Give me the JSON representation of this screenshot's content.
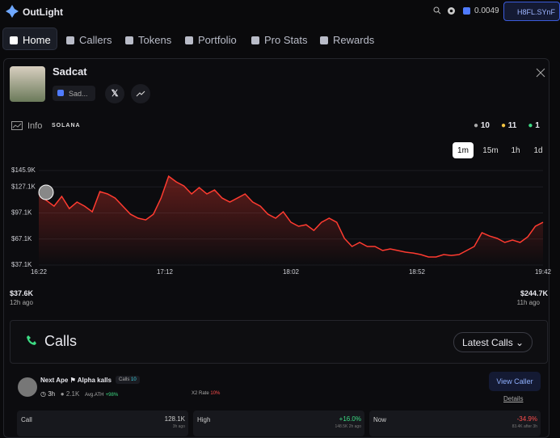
{
  "header": {
    "brand": "OutLight",
    "balance": "0.0049",
    "wallet": "H8FL.SYnF"
  },
  "nav": [
    "Home",
    "Callers",
    "Tokens",
    "Portfolio",
    "Pro Stats",
    "Rewards"
  ],
  "token": {
    "name": "Sadcat",
    "chip": "Sad...",
    "info": "Info",
    "chain": "SOLANA",
    "counts": [
      10,
      11,
      1
    ]
  },
  "timeframes": [
    "1m",
    "15m",
    "1h",
    "1d"
  ],
  "chart": {
    "type": "area",
    "color": "#ff3b30",
    "ylim": [
      37100,
      145900
    ],
    "yticks": [
      {
        "value": 145900,
        "label": "$145.9K"
      },
      {
        "value": 127100,
        "label": "$127.1K"
      },
      {
        "value": 97100,
        "label": "$97.1K"
      },
      {
        "value": 67100,
        "label": "$67.1K"
      },
      {
        "value": 37100,
        "label": "$37.1K"
      }
    ],
    "xticks": [
      "16:22",
      "17:12",
      "18:02",
      "18:52",
      "19:42"
    ],
    "values": [
      118900,
      111400,
      104900,
      116100,
      102100,
      109600,
      104900,
      98400,
      121600,
      118900,
      114200,
      104900,
      95600,
      91000,
      89100,
      95600,
      114200,
      139300,
      132800,
      128100,
      118900,
      126300,
      118900,
      123500,
      114200,
      109600,
      114200,
      118900,
      109600,
      104900,
      95600,
      91000,
      98400,
      86300,
      81700,
      83500,
      77000,
      86300,
      91000,
      86300,
      67800,
      58500,
      63100,
      58500,
      58500,
      53800,
      55700,
      53800,
      52000,
      51000,
      49200,
      46400,
      46400,
      49200,
      48200,
      49200,
      53800,
      58500,
      74300,
      70500,
      67800,
      63100,
      65900,
      63100,
      69600,
      81700,
      86300
    ],
    "grid": true
  },
  "range": {
    "start_value": "$37.6K",
    "start_time": "12h ago",
    "end_value": "$244.7K",
    "end_time": "11h ago"
  },
  "calls": {
    "title": "Calls",
    "sort": "Latest Calls",
    "caller": {
      "name": "Next Ape",
      "group": "Alpha kalls",
      "calls_label": "Calls",
      "calls": "10",
      "age": "3h",
      "followers": "2.1K",
      "ath_label": "Avg.ATH",
      "ath": "+98%",
      "x2_label": "X2 Rate",
      "x2": "10%",
      "view": "View Caller",
      "details": "Details",
      "stats": [
        {
          "label": "Call",
          "value": "128.1K",
          "sub": "3h ago"
        },
        {
          "label": "High",
          "value": "+16.0%",
          "sub": "148.5K 2h ago"
        },
        {
          "label": "Now",
          "value": "-34.9%",
          "sub": "83.4K after 3h"
        }
      ]
    }
  }
}
